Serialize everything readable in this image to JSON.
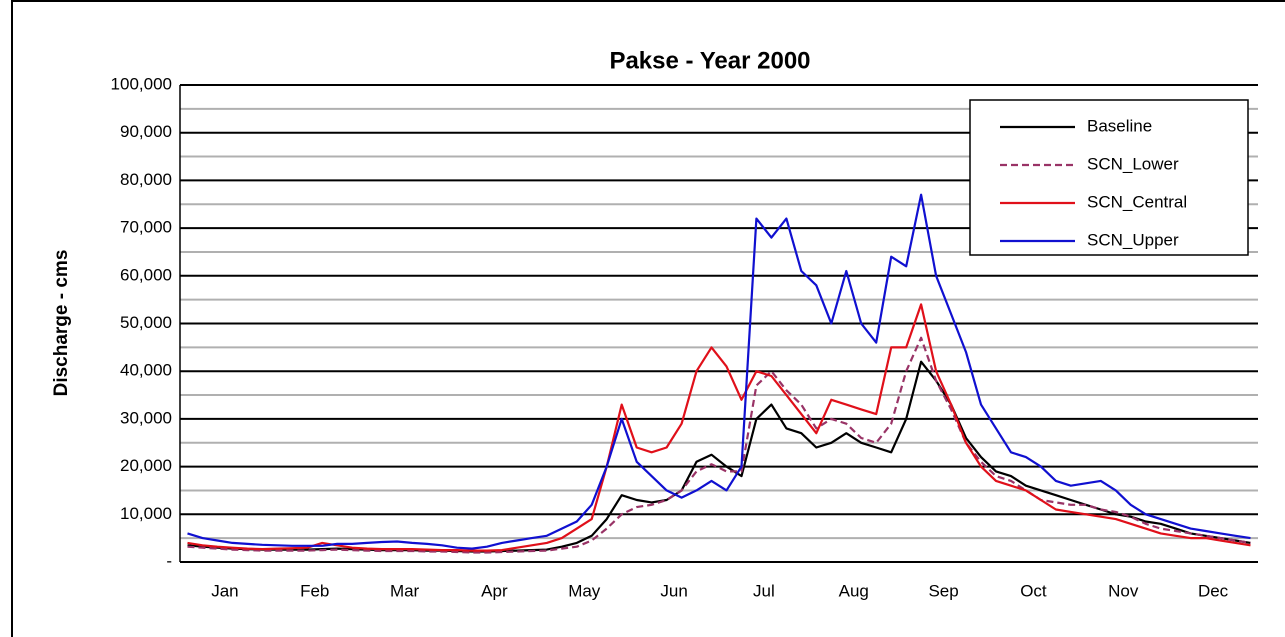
{
  "chart_data": {
    "type": "line",
    "title": "Pakse - Year 2000",
    "y_label": "Discharge - cms",
    "categories": [
      null,
      null,
      null,
      "Jan",
      null,
      null,
      null,
      null,
      null,
      "Feb",
      null,
      null,
      null,
      null,
      null,
      "Mar",
      null,
      null,
      null,
      null,
      null,
      "Apr",
      null,
      null,
      null,
      null,
      null,
      "May",
      null,
      null,
      null,
      null,
      null,
      "Jun",
      null,
      null,
      null,
      null,
      null,
      "Jul",
      null,
      null,
      null,
      null,
      null,
      "Aug",
      null,
      null,
      null,
      null,
      null,
      "Sep",
      null,
      null,
      null,
      null,
      null,
      "Oct",
      null,
      null,
      null,
      null,
      null,
      "Nov",
      null,
      null,
      null,
      null,
      null,
      "Dec",
      null,
      null
    ],
    "ylim": [
      0,
      100000
    ],
    "yticks": [
      {
        "value": 0,
        "label": "-"
      },
      {
        "value": 10000,
        "label": "10,000"
      },
      {
        "value": 20000,
        "label": "20,000"
      },
      {
        "value": 30000,
        "label": "30,000"
      },
      {
        "value": 40000,
        "label": "40,000"
      },
      {
        "value": 50000,
        "label": "50,000"
      },
      {
        "value": 60000,
        "label": "60,000"
      },
      {
        "value": 70000,
        "label": "70,000"
      },
      {
        "value": 80000,
        "label": "80,000"
      },
      {
        "value": 90000,
        "label": "90,000"
      },
      {
        "value": 100000,
        "label": "100,000"
      }
    ],
    "grid": true,
    "legend": "upper right",
    "series": [
      {
        "name": "Baseline",
        "color": "#000000",
        "values": [
          3500,
          3200,
          3000,
          2800,
          2700,
          2600,
          2600,
          2600,
          2600,
          2700,
          2800,
          2700,
          2600,
          2500,
          2500,
          2500,
          2400,
          2400,
          2300,
          2200,
          2200,
          2300,
          2400,
          2500,
          2600,
          3200,
          4000,
          5500,
          9000,
          14000,
          13000,
          12500,
          13000,
          15000,
          21000,
          22500,
          20000,
          18000,
          30000,
          33000,
          28000,
          27000,
          24000,
          25000,
          27000,
          25000,
          24000,
          23000,
          30000,
          42000,
          38000,
          33000,
          26000,
          22000,
          19000,
          18000,
          16000,
          15000,
          14000,
          13000,
          12000,
          11000,
          10000,
          9500,
          8500,
          8000,
          7000,
          6000,
          5500,
          5000,
          4500,
          4000
        ]
      },
      {
        "name": "SCN_Lower",
        "color": "#993366",
        "dashed": true,
        "values": [
          3200,
          3000,
          2800,
          2600,
          2500,
          2400,
          2400,
          2400,
          2400,
          2500,
          2600,
          2500,
          2400,
          2300,
          2300,
          2300,
          2200,
          2200,
          2100,
          2000,
          2000,
          2100,
          2200,
          2300,
          2400,
          2800,
          3200,
          4500,
          7000,
          10000,
          11500,
          12000,
          13000,
          15000,
          19000,
          20500,
          19000,
          19000,
          37000,
          40000,
          36000,
          33000,
          28000,
          30000,
          29000,
          26000,
          25000,
          29000,
          40000,
          47000,
          38000,
          32000,
          25000,
          21000,
          18000,
          17000,
          15000,
          13000,
          12500,
          12000,
          12000,
          11000,
          10500,
          9500,
          8000,
          7000,
          6500,
          6000,
          5500,
          5000,
          4500,
          4000
        ]
      },
      {
        "name": "SCN_Central",
        "color": "#e0101a",
        "values": [
          4000,
          3500,
          3200,
          3000,
          2800,
          2700,
          2800,
          2900,
          3000,
          4000,
          3500,
          3000,
          2800,
          2700,
          2700,
          2700,
          2600,
          2500,
          2500,
          2400,
          2400,
          2500,
          3000,
          3500,
          4000,
          5000,
          7000,
          9000,
          20000,
          33000,
          24000,
          23000,
          24000,
          29000,
          40000,
          45000,
          41000,
          34000,
          40000,
          39000,
          35000,
          31000,
          27000,
          34000,
          33000,
          32000,
          31000,
          45000,
          45000,
          54000,
          40000,
          33000,
          25000,
          20000,
          17000,
          16000,
          15000,
          13000,
          11000,
          10500,
          10000,
          9500,
          9000,
          8000,
          7000,
          6000,
          5500,
          5000,
          5000,
          4500,
          4000,
          3500
        ]
      },
      {
        "name": "SCN_Upper",
        "color": "#1010d0",
        "values": [
          6000,
          5000,
          4500,
          4000,
          3800,
          3600,
          3500,
          3400,
          3400,
          3400,
          3800,
          3800,
          4000,
          4200,
          4300,
          4000,
          3800,
          3500,
          3000,
          2800,
          3200,
          4000,
          4500,
          5000,
          5500,
          7000,
          8500,
          12000,
          20000,
          30000,
          21000,
          18000,
          15000,
          13500,
          15000,
          17000,
          15000,
          20000,
          72000,
          68000,
          72000,
          61000,
          58000,
          50000,
          61000,
          50000,
          46000,
          64000,
          62000,
          77000,
          60000,
          52000,
          44000,
          33000,
          28000,
          23000,
          22000,
          20000,
          17000,
          16000,
          16500,
          17000,
          15000,
          12000,
          10000,
          9000,
          8000,
          7000,
          6500,
          6000,
          5500,
          5000
        ]
      }
    ]
  }
}
